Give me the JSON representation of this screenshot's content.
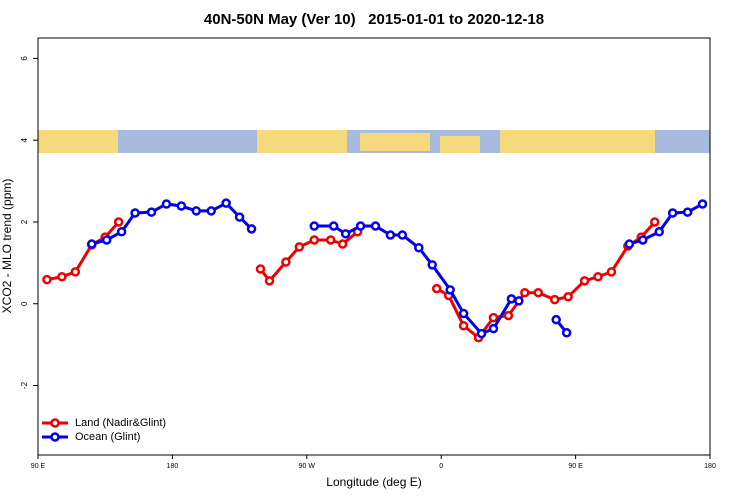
{
  "chart_data": {
    "type": "line",
    "title": "40N-50N May (Ver 10)   2015-01-01 to 2020-12-18",
    "x_label": "Longitude (deg E)",
    "y_label": "XCO2 - MLO trend (ppm)",
    "xlim": [
      90,
      540
    ],
    "xticks": [
      {
        "value": 90,
        "label": "90 E"
      },
      {
        "value": 180,
        "label": "180"
      },
      {
        "value": 270,
        "label": "90 W"
      },
      {
        "value": 360,
        "label": "0"
      },
      {
        "value": 450,
        "label": "90 E"
      },
      {
        "value": 540,
        "label": "180"
      }
    ],
    "ylim": [
      -3.7,
      6.5
    ],
    "yticks": [
      -2,
      0,
      2,
      4,
      6
    ],
    "legend": "bottom-left",
    "series": [
      {
        "name": "Land (Nadir&Glint)",
        "color": "#ee0000",
        "x": [
          96,
          106,
          115,
          126,
          135,
          144,
          null,
          239,
          245,
          256,
          265,
          275,
          286,
          294,
          304,
          null,
          357,
          365,
          375,
          385,
          395,
          405,
          416,
          425,
          436,
          445,
          456,
          465,
          474,
          485,
          494,
          503
        ],
        "values": [
          0.59,
          0.66,
          0.78,
          1.44,
          1.63,
          2.0,
          null,
          0.85,
          0.56,
          1.02,
          1.39,
          1.56,
          1.56,
          1.46,
          1.76,
          null,
          0.37,
          0.2,
          -0.54,
          -0.83,
          -0.34,
          -0.29,
          0.27,
          0.27,
          0.1,
          0.17,
          0.56,
          0.66,
          0.78,
          1.41,
          1.63,
          2.0
        ]
      },
      {
        "name": "Ocean (Glint)",
        "color": "#0000ee",
        "x": [
          126,
          136,
          146,
          155,
          166,
          176,
          186,
          196,
          206,
          216,
          225,
          233,
          null,
          275,
          288,
          296,
          306,
          316,
          326,
          334,
          345,
          354,
          366,
          375,
          387,
          395,
          407,
          412,
          null,
          437,
          444,
          null,
          486,
          495,
          506,
          515,
          525,
          535
        ],
        "values": [
          1.46,
          1.56,
          1.76,
          2.22,
          2.24,
          2.44,
          2.39,
          2.27,
          2.27,
          2.46,
          2.12,
          1.83,
          null,
          1.9,
          1.9,
          1.71,
          1.9,
          1.9,
          1.68,
          1.68,
          1.37,
          0.95,
          0.34,
          -0.24,
          -0.73,
          -0.61,
          0.12,
          0.07,
          null,
          -0.39,
          -0.71,
          null,
          1.46,
          1.56,
          1.76,
          2.22,
          2.24,
          2.44
        ]
      }
    ]
  }
}
